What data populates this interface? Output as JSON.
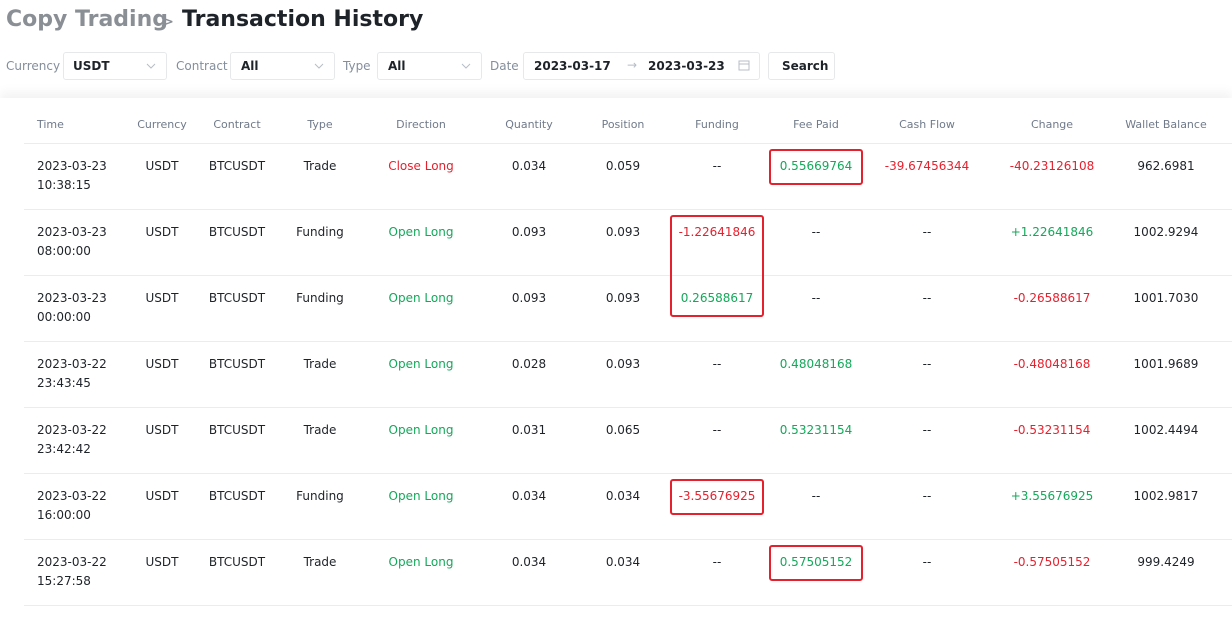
{
  "header": {
    "breadcrumb": "Copy Trading",
    "separator": ">",
    "title": "Transaction History"
  },
  "filters": {
    "currency": {
      "label": "Currency",
      "value": "USDT"
    },
    "contract": {
      "label": "Contract",
      "value": "All"
    },
    "type": {
      "label": "Type",
      "value": "All"
    },
    "date": {
      "label": "Date",
      "start": "2023-03-17",
      "arrow": "→",
      "end": "2023-03-23"
    },
    "search": "Search"
  },
  "table": {
    "columns": [
      "Time",
      "Currency",
      "Contract",
      "Type",
      "Direction",
      "Quantity",
      "Position",
      "Funding",
      "Fee Paid",
      "Cash Flow",
      "Change",
      "Wallet Balance"
    ],
    "rows": [
      {
        "date": "2023-03-23",
        "time": "10:38:15",
        "currency": "USDT",
        "contract": "BTCUSDT",
        "type": "Trade",
        "direction": "Close Long",
        "quantity": "0.034",
        "position": "0.059",
        "funding": "--",
        "fee_paid": "0.55669764",
        "cash_flow": "-39.67456344",
        "change": "-40.23126108",
        "wallet_balance": "962.6981",
        "highlight": [
          "fee_paid"
        ]
      },
      {
        "date": "2023-03-23",
        "time": "08:00:00",
        "currency": "USDT",
        "contract": "BTCUSDT",
        "type": "Funding",
        "direction": "Open Long",
        "quantity": "0.093",
        "position": "0.093",
        "funding": "-1.22641846",
        "fee_paid": "--",
        "cash_flow": "--",
        "change": "+1.22641846",
        "wallet_balance": "1002.9294",
        "highlight": [
          "funding"
        ]
      },
      {
        "date": "2023-03-23",
        "time": "00:00:00",
        "currency": "USDT",
        "contract": "BTCUSDT",
        "type": "Funding",
        "direction": "Open Long",
        "quantity": "0.093",
        "position": "0.093",
        "funding": "0.26588617",
        "fee_paid": "--",
        "cash_flow": "--",
        "change": "-0.26588617",
        "wallet_balance": "1001.7030",
        "highlight": [
          "funding"
        ]
      },
      {
        "date": "2023-03-22",
        "time": "23:43:45",
        "currency": "USDT",
        "contract": "BTCUSDT",
        "type": "Trade",
        "direction": "Open Long",
        "quantity": "0.028",
        "position": "0.093",
        "funding": "--",
        "fee_paid": "0.48048168",
        "cash_flow": "--",
        "change": "-0.48048168",
        "wallet_balance": "1001.9689",
        "highlight": []
      },
      {
        "date": "2023-03-22",
        "time": "23:42:42",
        "currency": "USDT",
        "contract": "BTCUSDT",
        "type": "Trade",
        "direction": "Open Long",
        "quantity": "0.031",
        "position": "0.065",
        "funding": "--",
        "fee_paid": "0.53231154",
        "cash_flow": "--",
        "change": "-0.53231154",
        "wallet_balance": "1002.4494",
        "highlight": []
      },
      {
        "date": "2023-03-22",
        "time": "16:00:00",
        "currency": "USDT",
        "contract": "BTCUSDT",
        "type": "Funding",
        "direction": "Open Long",
        "quantity": "0.034",
        "position": "0.034",
        "funding": "-3.55676925",
        "fee_paid": "--",
        "cash_flow": "--",
        "change": "+3.55676925",
        "wallet_balance": "1002.9817",
        "highlight": [
          "funding"
        ]
      },
      {
        "date": "2023-03-22",
        "time": "15:27:58",
        "currency": "USDT",
        "contract": "BTCUSDT",
        "type": "Trade",
        "direction": "Open Long",
        "quantity": "0.034",
        "position": "0.034",
        "funding": "--",
        "fee_paid": "0.57505152",
        "cash_flow": "--",
        "change": "-0.57505152",
        "wallet_balance": "999.4249",
        "highlight": [
          "fee_paid"
        ]
      }
    ]
  }
}
